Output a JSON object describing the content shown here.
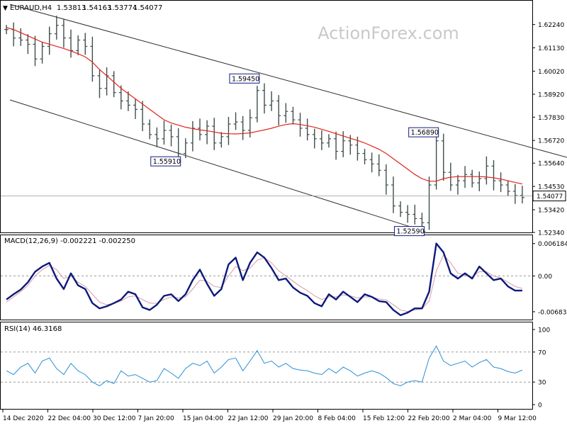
{
  "header": {
    "symbol": "EURAUD,H4",
    "open": "1.53813",
    "high": "1.54163",
    "low": "1.53774",
    "close": "1.54077"
  },
  "watermark": "ActionForex.com",
  "colors": {
    "candles": "#3d4f4b",
    "ma": "#e0231b",
    "macd": "#0c1a7a",
    "signal": "#d99aa8",
    "rsi": "#2b8fd6",
    "channel": "#2f2f2f",
    "label_border": "#101a8a"
  },
  "chart_data": [
    {
      "type": "candlestick",
      "title": "EURAUD,H4",
      "ylim": [
        1.5234,
        1.6334
      ],
      "yticks": [
        "1.62240",
        "1.61130",
        "1.60020",
        "1.58920",
        "1.57830",
        "1.56720",
        "1.55640",
        "1.54530",
        "1.53420",
        "1.52340"
      ],
      "current_price": "1.54077",
      "annotations": [
        {
          "label": "1.59450",
          "index": 35.5,
          "value": 1.5945
        },
        {
          "label": "1.55910",
          "index": 24.5,
          "value": 1.5591
        },
        {
          "label": "1.56890",
          "index": 60.5,
          "value": 1.5689
        },
        {
          "label": "1.52590",
          "index": 58.5,
          "value": 1.5259
        }
      ],
      "channel": {
        "upper": [
          [
            0.5,
            1.632
          ],
          [
            80.5,
            1.557
          ]
        ],
        "lower": [
          [
            0.5,
            1.5865
          ],
          [
            58.5,
            1.5238
          ]
        ]
      },
      "x_labels": [
        "14 Dec 2020",
        "22 Dec 04:00",
        "30 Dec 12:00",
        "7 Jan 20:00",
        "15 Jan 04:00",
        "22 Jan 12:00",
        "29 Jan 20:00",
        "8 Feb 04:00",
        "15 Feb 12:00",
        "22 Feb 20:00",
        "2 Mar 04:00",
        "9 Mar 12:00"
      ],
      "series": [
        {
          "kind": "close",
          "values": [
            1.62,
            1.616,
            1.615,
            1.613,
            1.606,
            1.612,
            1.618,
            1.622,
            1.616,
            1.61,
            1.615,
            1.612,
            1.598,
            1.592,
            1.598,
            1.59,
            1.586,
            1.584,
            1.582,
            1.575,
            1.57,
            1.568,
            1.572,
            1.569,
            1.561,
            1.566,
            1.573,
            1.57,
            1.574,
            1.566,
            1.569,
            1.575,
            1.576,
            1.572,
            1.578,
            1.591,
            1.584,
            1.586,
            1.579,
            1.581,
            1.577,
            1.573,
            1.57,
            1.568,
            1.566,
            1.568,
            1.562,
            1.567,
            1.565,
            1.561,
            1.558,
            1.556,
            1.553,
            1.546,
            1.536,
            1.533,
            1.532,
            1.53,
            1.528,
            1.546,
            1.567,
            1.552,
            1.546,
            1.548,
            1.551,
            1.547,
            1.549,
            1.555,
            1.548,
            1.546,
            1.543,
            1.541,
            1.54
          ]
        },
        {
          "kind": "ma",
          "values": [
            1.621,
            1.62,
            1.6185,
            1.617,
            1.6155,
            1.614,
            1.613,
            1.612,
            1.611,
            1.6098,
            1.6085,
            1.607,
            1.6045,
            1.601,
            1.598,
            1.595,
            1.592,
            1.5895,
            1.587,
            1.5845,
            1.582,
            1.5795,
            1.577,
            1.5755,
            1.5745,
            1.5735,
            1.5728,
            1.5722,
            1.5718,
            1.5712,
            1.5706,
            1.5704,
            1.5703,
            1.5705,
            1.5708,
            1.5715,
            1.5722,
            1.573,
            1.574,
            1.5748,
            1.5752,
            1.5748,
            1.5742,
            1.5735,
            1.5725,
            1.5715,
            1.5704,
            1.5693,
            1.5682,
            1.5672,
            1.566,
            1.5645,
            1.563,
            1.561,
            1.5585,
            1.556,
            1.5535,
            1.551,
            1.549,
            1.5478,
            1.5478,
            1.549,
            1.5497,
            1.55,
            1.55,
            1.55,
            1.55,
            1.5498,
            1.5494,
            1.5488,
            1.548,
            1.5472,
            1.5465
          ]
        }
      ]
    },
    {
      "type": "line",
      "title": "MACD(12,26,9) -0.002221 -0.002250",
      "ylim": [
        -0.0082,
        0.0075
      ],
      "yticks": [
        "0.006184",
        "0.00",
        "-0.006837"
      ],
      "series": [
        {
          "kind": "macd",
          "values": [
            -0.0045,
            -0.0035,
            -0.0026,
            -0.0012,
            0.0008,
            0.0018,
            0.0025,
            -0.0005,
            -0.0025,
            0.0005,
            -0.0018,
            -0.0025,
            -0.0052,
            -0.0062,
            -0.0058,
            -0.0052,
            -0.0045,
            -0.003,
            -0.0035,
            -0.006,
            -0.0065,
            -0.0055,
            -0.0038,
            -0.0035,
            -0.0048,
            -0.0035,
            -0.0008,
            0.0012,
            -0.0015,
            -0.0038,
            -0.0025,
            0.0022,
            0.0035,
            -0.0008,
            0.0025,
            0.0045,
            0.0035,
            0.0015,
            -0.0008,
            -0.0005,
            -0.0022,
            -0.0032,
            -0.0038,
            -0.0052,
            -0.0058,
            -0.0035,
            -0.0045,
            -0.003,
            -0.004,
            -0.005,
            -0.0035,
            -0.004,
            -0.0048,
            -0.005,
            -0.0065,
            -0.0075,
            -0.007,
            -0.0062,
            -0.0062,
            -0.003,
            0.0062,
            0.0045,
            0.0005,
            -0.0005,
            0.0005,
            -0.0005,
            0.0018,
            0.0005,
            -0.0008,
            -0.0005,
            -0.002,
            -0.0028,
            -0.0028
          ]
        },
        {
          "kind": "signal",
          "values": [
            -0.005,
            -0.004,
            -0.003,
            -0.0018,
            0.0,
            0.0012,
            0.002,
            0.0012,
            -0.0005,
            0.0,
            -0.0012,
            -0.002,
            -0.0035,
            -0.005,
            -0.0055,
            -0.0052,
            -0.0048,
            -0.004,
            -0.0038,
            -0.0045,
            -0.0052,
            -0.0052,
            -0.0045,
            -0.004,
            -0.0042,
            -0.004,
            -0.0025,
            -0.0008,
            -0.001,
            -0.002,
            -0.0022,
            0.0,
            0.0018,
            0.001,
            0.0015,
            0.003,
            0.0035,
            0.0025,
            0.001,
            0.0,
            -0.001,
            -0.002,
            -0.0028,
            -0.0038,
            -0.0045,
            -0.004,
            -0.004,
            -0.0036,
            -0.0038,
            -0.0042,
            -0.004,
            -0.004,
            -0.0044,
            -0.0046,
            -0.0055,
            -0.0065,
            -0.0068,
            -0.0065,
            -0.0063,
            -0.0048,
            0.001,
            0.004,
            0.0025,
            0.0005,
            0.0002,
            -0.0002,
            0.0008,
            0.0008,
            0.0,
            -0.0004,
            -0.0012,
            -0.002,
            -0.0024
          ]
        }
      ]
    },
    {
      "type": "line",
      "title": "RSI(14) 46.3168",
      "ylim": [
        0,
        100
      ],
      "yticks": [
        "100",
        "70",
        "30",
        "0"
      ],
      "series": [
        {
          "kind": "rsi",
          "values": [
            45,
            40,
            50,
            55,
            42,
            58,
            62,
            48,
            40,
            55,
            45,
            40,
            30,
            25,
            32,
            28,
            45,
            38,
            40,
            35,
            30,
            32,
            48,
            42,
            35,
            48,
            55,
            52,
            58,
            42,
            50,
            60,
            62,
            45,
            58,
            72,
            55,
            58,
            50,
            55,
            48,
            46,
            45,
            42,
            40,
            48,
            42,
            50,
            45,
            38,
            42,
            45,
            42,
            36,
            28,
            25,
            30,
            32,
            30,
            62,
            78,
            58,
            52,
            55,
            58,
            50,
            56,
            60,
            50,
            48,
            44,
            42,
            46
          ]
        }
      ]
    }
  ]
}
